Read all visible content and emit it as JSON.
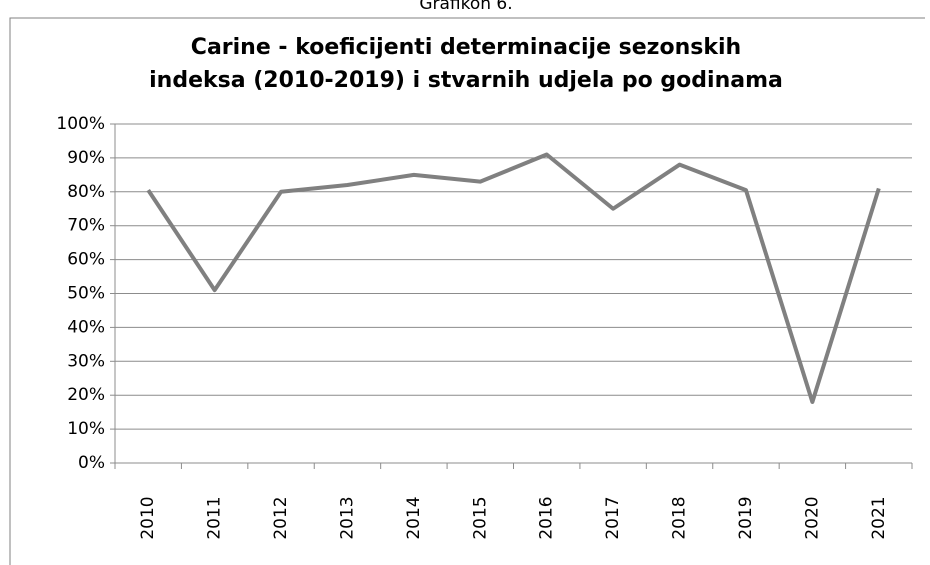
{
  "caption": "Grafikon 6.",
  "chart_data": {
    "type": "line",
    "title": [
      "Carine - koeficijenti determinacije sezonskih",
      "indeksa (2010-2019)  i stvarnih udjela po godinama"
    ],
    "categories": [
      "2010",
      "2011",
      "2012",
      "2013",
      "2014",
      "2015",
      "2016",
      "2017",
      "2018",
      "2019",
      "2020",
      "2021"
    ],
    "values": [
      80.5,
      51,
      80,
      82,
      85,
      83,
      91,
      75,
      88,
      80.5,
      18,
      81
    ],
    "color": "#808080",
    "ylim": [
      0,
      100
    ],
    "yticks": [
      {
        "value": 0,
        "label": "0%"
      },
      {
        "value": 10,
        "label": "10%"
      },
      {
        "value": 20,
        "label": "20%"
      },
      {
        "value": 30,
        "label": "30%"
      },
      {
        "value": 40,
        "label": "40%"
      },
      {
        "value": 50,
        "label": "50%"
      },
      {
        "value": 60,
        "label": "60%"
      },
      {
        "value": 70,
        "label": "70%"
      },
      {
        "value": 80,
        "label": "80%"
      },
      {
        "value": 90,
        "label": "90%"
      },
      {
        "value": 100,
        "label": "100%"
      }
    ],
    "grid": true
  }
}
